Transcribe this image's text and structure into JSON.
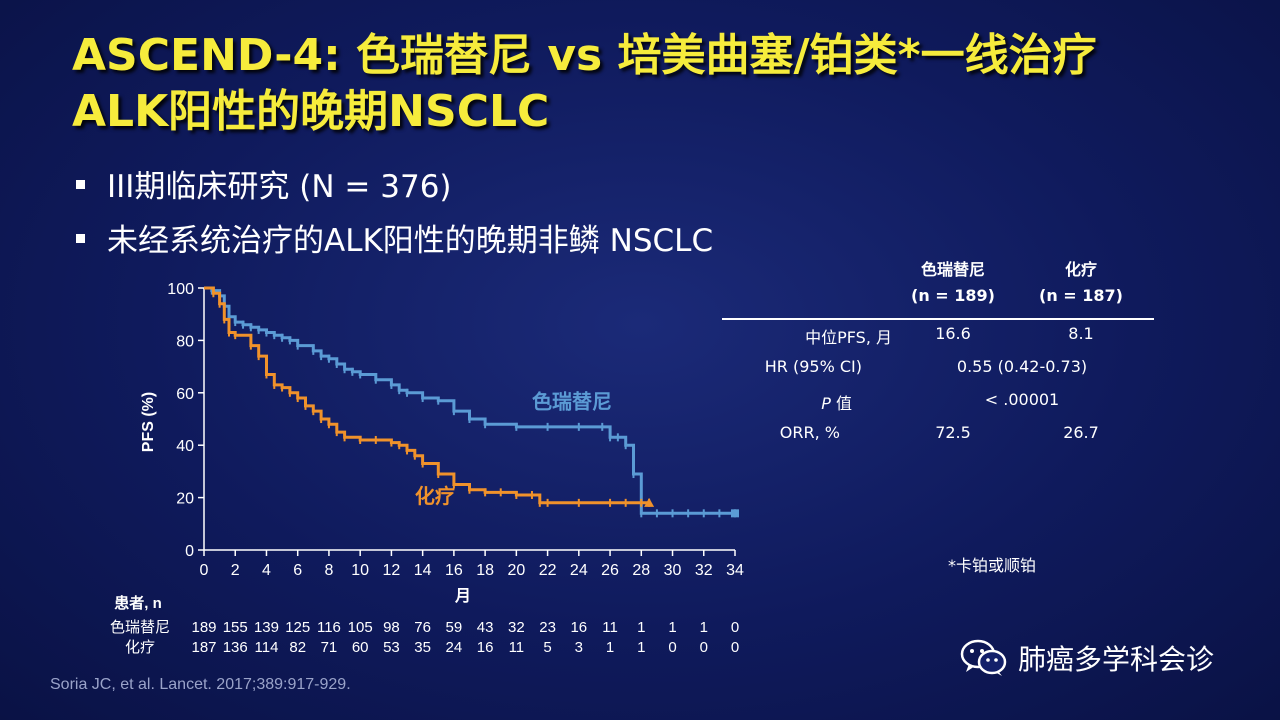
{
  "slide": {
    "title_line1": "ASCEND-4: 色瑞替尼 vs 培美曲塞/铂类*一线治疗",
    "title_line2": "ALK阳性的晚期NSCLC",
    "bullets": [
      "III期临床研究 (N = 376)",
      "未经系统治疗的ALK阳性的晚期非鳞 NSCLC"
    ],
    "footnote": "*卡铂或顺铂",
    "citation": "Soria JC, et al. Lancet. 2017;389:917-929.",
    "watermark": "肺癌多学科会诊",
    "colors": {
      "title": "#f6ec3c",
      "ceritinib": "#5b9bd5",
      "chemo": "#f0922b",
      "background": "#13206a"
    }
  },
  "stats_table": {
    "col1_name": "色瑞替尼",
    "col1_n": "(n = 189)",
    "col2_name": "化疗",
    "col2_n": "(n = 187)",
    "rows": [
      {
        "label": "中位PFS, 月",
        "v1": "16.6",
        "v2": "8.1"
      },
      {
        "label": "HR (95% CI)",
        "combined": "0.55 (0.42-0.73)"
      },
      {
        "label_italic": "P",
        "label_rest": " 值",
        "combined": "< .00001"
      },
      {
        "label": "ORR, %",
        "v1": "72.5",
        "v2": "26.7"
      }
    ]
  },
  "chart_data": {
    "type": "line",
    "title": "",
    "xlabel": "月",
    "ylabel": "PFS (%)",
    "xlim": [
      0,
      34
    ],
    "ylim": [
      0,
      100
    ],
    "xticks": [
      0,
      2,
      4,
      6,
      8,
      10,
      12,
      14,
      16,
      18,
      20,
      22,
      24,
      26,
      28,
      30,
      32,
      34
    ],
    "yticks": [
      0,
      20,
      40,
      60,
      80,
      100
    ],
    "grid": false,
    "series": [
      {
        "name": "色瑞替尼",
        "color": "#5b9bd5",
        "x": [
          0,
          0.5,
          1,
          1.3,
          1.6,
          2,
          2.5,
          3,
          3.5,
          4,
          4.5,
          5,
          5.5,
          6,
          7,
          7.5,
          8,
          8.5,
          9,
          9.5,
          10,
          11,
          12,
          12.5,
          13,
          14,
          15,
          16,
          17,
          18,
          20,
          22,
          24,
          25.5,
          26,
          26.5,
          27,
          27.5,
          28,
          29,
          30,
          31,
          32,
          33,
          34
        ],
        "y": [
          100,
          99,
          97,
          93,
          89,
          87,
          86,
          85,
          84,
          83,
          82,
          81,
          80,
          78,
          76,
          74,
          73,
          71,
          69,
          68,
          67,
          65,
          63,
          61,
          60,
          58,
          57,
          53,
          50,
          48,
          47,
          47,
          47,
          47,
          43,
          43,
          40,
          29,
          14,
          14,
          14,
          14,
          14,
          14,
          14
        ]
      },
      {
        "name": "化疗",
        "color": "#f0922b",
        "x": [
          0,
          0.6,
          1,
          1.3,
          1.6,
          2,
          3,
          3.5,
          4,
          4.5,
          5,
          5.5,
          6,
          6.5,
          7,
          7.5,
          8,
          8.5,
          9,
          10,
          11,
          12,
          12.5,
          13,
          13.5,
          14,
          15,
          16,
          17,
          18,
          19,
          20,
          21,
          21.5,
          22,
          24,
          26,
          27,
          28,
          28.5
        ],
        "y": [
          100,
          98,
          94,
          88,
          83,
          82,
          78,
          74,
          67,
          63,
          62,
          60,
          58,
          55,
          53,
          50,
          48,
          45,
          43,
          42,
          42,
          41,
          40,
          38,
          36,
          33,
          29,
          25,
          23,
          22,
          22,
          21,
          21,
          18,
          18,
          18,
          18,
          18,
          18,
          18
        ]
      }
    ],
    "annotations": [
      {
        "text": "色瑞替尼",
        "x": 21,
        "y": 54,
        "color": "#5b9bd5"
      },
      {
        "text": "化疗",
        "x": 13.5,
        "y": 18,
        "color": "#f0922b"
      }
    ],
    "risk_table": {
      "header": "患者, n",
      "rows": [
        {
          "label": "色瑞替尼",
          "values": [
            189,
            155,
            139,
            125,
            116,
            105,
            98,
            76,
            59,
            43,
            32,
            23,
            16,
            11,
            1,
            1,
            1,
            0
          ]
        },
        {
          "label": "化疗",
          "values": [
            187,
            136,
            114,
            82,
            71,
            60,
            53,
            35,
            24,
            16,
            11,
            5,
            3,
            1,
            1,
            0,
            0,
            0
          ]
        }
      ]
    }
  }
}
